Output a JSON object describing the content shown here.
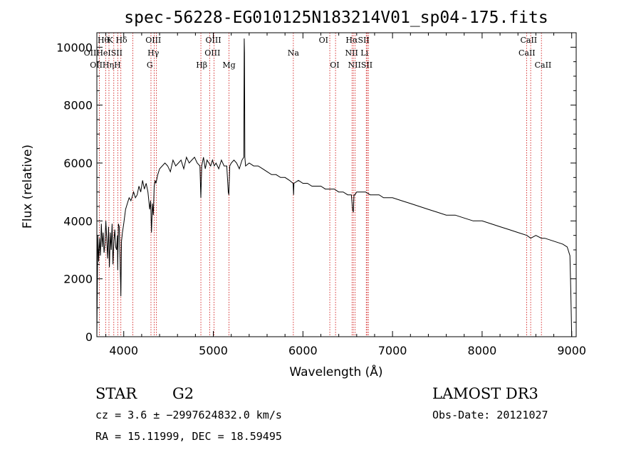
{
  "chart_data": {
    "type": "line",
    "title": "spec-56228-EG010125N183214V01_sp04-175.fits",
    "xlabel": "Wavelength (Å)",
    "ylabel": "Flux (relative)",
    "xlim": [
      3700,
      9050
    ],
    "ylim": [
      0,
      10500
    ],
    "xticks": [
      4000,
      5000,
      6000,
      7000,
      8000,
      9000
    ],
    "yticks": [
      0,
      2000,
      4000,
      6000,
      8000,
      10000
    ],
    "grid": false,
    "series": [
      {
        "x": [
          3700,
          3710,
          3720,
          3730,
          3740,
          3750,
          3760,
          3770,
          3780,
          3790,
          3800,
          3810,
          3820,
          3830,
          3840,
          3850,
          3860,
          3870,
          3880,
          3890,
          3900,
          3910,
          3920,
          3930,
          3933,
          3940,
          3950,
          3960,
          3968,
          3975,
          3985,
          4000,
          4020,
          4040,
          4060,
          4080,
          4101,
          4110,
          4130,
          4150,
          4170,
          4190,
          4210,
          4230,
          4250,
          4270,
          4290,
          4300,
          4310,
          4320,
          4330,
          4340,
          4350,
          4360,
          4380,
          4400,
          4430,
          4460,
          4490,
          4520,
          4550,
          4580,
          4610,
          4640,
          4670,
          4700,
          4730,
          4760,
          4790,
          4820,
          4850,
          4861,
          4870,
          4890,
          4910,
          4930,
          4950,
          4970,
          4990,
          5010,
          5030,
          5060,
          5090,
          5120,
          5150,
          5167,
          5173,
          5183,
          5200,
          5230,
          5260,
          5290,
          5320,
          5340,
          5345,
          5348,
          5352,
          5360,
          5400,
          5450,
          5500,
          5550,
          5600,
          5650,
          5700,
          5750,
          5800,
          5850,
          5890,
          5896,
          5900,
          5950,
          6000,
          6050,
          6100,
          6150,
          6200,
          6250,
          6300,
          6350,
          6400,
          6450,
          6500,
          6540,
          6555,
          6563,
          6570,
          6580,
          6600,
          6650,
          6700,
          6750,
          6800,
          6850,
          6900,
          6950,
          7000,
          7100,
          7200,
          7300,
          7400,
          7500,
          7600,
          7700,
          7800,
          7900,
          8000,
          8100,
          8200,
          8300,
          8400,
          8500,
          8542,
          8600,
          8662,
          8700,
          8800,
          8900,
          8950,
          8980,
          8990,
          9000
        ],
        "y": [
          0,
          3500,
          2600,
          3400,
          2800,
          3900,
          3100,
          3600,
          2900,
          3200,
          4000,
          3400,
          2700,
          3800,
          2400,
          3600,
          3000,
          3900,
          2500,
          3300,
          3700,
          3100,
          3000,
          3500,
          2300,
          3900,
          3800,
          2600,
          1400,
          3300,
          3600,
          3900,
          4400,
          4600,
          4800,
          4700,
          4900,
          5000,
          4800,
          4900,
          5200,
          5000,
          5400,
          5100,
          5300,
          5000,
          4400,
          4700,
          3600,
          4600,
          4200,
          5200,
          5400,
          5300,
          5600,
          5800,
          5900,
          6000,
          5900,
          5700,
          6100,
          5900,
          6000,
          6100,
          5800,
          6200,
          6000,
          6100,
          6200,
          6000,
          5900,
          4800,
          5900,
          6200,
          5800,
          6100,
          6000,
          5900,
          6100,
          5900,
          6000,
          5800,
          6100,
          5900,
          5900,
          5000,
          4900,
          5900,
          6000,
          6100,
          6000,
          5800,
          6100,
          6200,
          10300,
          9800,
          6200,
          5900,
          6000,
          5900,
          5900,
          5800,
          5700,
          5600,
          5600,
          5500,
          5500,
          5400,
          5300,
          4900,
          5300,
          5400,
          5300,
          5300,
          5200,
          5200,
          5200,
          5100,
          5100,
          5100,
          5000,
          5000,
          4900,
          4900,
          4400,
          4300,
          4900,
          4900,
          5000,
          5000,
          5000,
          4900,
          4900,
          4900,
          4800,
          4800,
          4800,
          4700,
          4600,
          4500,
          4400,
          4300,
          4200,
          4200,
          4100,
          4000,
          4000,
          3900,
          3800,
          3700,
          3600,
          3500,
          3400,
          3500,
          3400,
          3400,
          3300,
          3200,
          3100,
          2800,
          1500,
          0
        ]
      }
    ],
    "line_markers": [
      {
        "wl": 3728,
        "labels": [
          "OII"
        ]
      },
      {
        "wl": 3798,
        "labels": [
          "OII"
        ]
      },
      {
        "wl": 3835,
        "labels": [
          "Hθ",
          "HeI",
          "Hη"
        ]
      },
      {
        "wl": 3889,
        "labels": [
          "HeI"
        ]
      },
      {
        "wl": 3933,
        "labels": [
          "K"
        ]
      },
      {
        "wl": 3968,
        "labels": [
          "SII",
          "H"
        ]
      },
      {
        "wl": 4101,
        "labels": [
          "Hδ",
          "SII"
        ]
      },
      {
        "wl": 4304,
        "labels": [
          "OIII",
          "G"
        ]
      },
      {
        "wl": 4340,
        "labels": [
          "Hγ"
        ]
      },
      {
        "wl": 4363,
        "labels": [
          "OIII"
        ]
      },
      {
        "wl": 4861,
        "labels": [
          "Hβ"
        ]
      },
      {
        "wl": 4959,
        "labels": [
          "OIII"
        ]
      },
      {
        "wl": 5007,
        "labels": [
          "OIII"
        ]
      },
      {
        "wl": 5175,
        "labels": [
          "Mg"
        ]
      },
      {
        "wl": 5893,
        "labels": [
          "Na"
        ]
      },
      {
        "wl": 6300,
        "labels": [
          "OI"
        ]
      },
      {
        "wl": 6364,
        "labels": [
          "OI"
        ]
      },
      {
        "wl": 6548,
        "labels": [
          "NII"
        ]
      },
      {
        "wl": 6563,
        "labels": [
          "Hα",
          "NII"
        ]
      },
      {
        "wl": 6583,
        "labels": [
          "NII"
        ]
      },
      {
        "wl": 6707,
        "labels": [
          "Li"
        ]
      },
      {
        "wl": 6717,
        "labels": [
          "SII",
          "SII"
        ]
      },
      {
        "wl": 6731,
        "labels": [
          "SII",
          "SII"
        ]
      },
      {
        "wl": 8498,
        "labels": [
          "CaII"
        ]
      },
      {
        "wl": 8542,
        "labels": [
          "CaII"
        ]
      },
      {
        "wl": 8662,
        "labels": [
          "CaII"
        ]
      }
    ],
    "line_label_rows": [
      [
        {
          "wl": 3772,
          "text": "Hθ"
        },
        {
          "wl": 3850,
          "text": "K"
        },
        {
          "wl": 3975,
          "text": "Hδ"
        },
        {
          "wl": 4330,
          "text": "OIII"
        },
        {
          "wl": 5000,
          "text": "OIII"
        },
        {
          "wl": 6230,
          "text": "OI"
        },
        {
          "wl": 6610,
          "text": "HαSII"
        },
        {
          "wl": 8520,
          "text": "CaII"
        }
      ],
      [
        {
          "wl": 3770,
          "text": "OIIHeISII"
        },
        {
          "wl": 4330,
          "text": "Hγ"
        },
        {
          "wl": 4990,
          "text": "OIII"
        },
        {
          "wl": 5893,
          "text": "Na"
        },
        {
          "wl": 6600,
          "text": "NII Li"
        },
        {
          "wl": 8500,
          "text": "CaII"
        }
      ],
      [
        {
          "wl": 3795,
          "text": "OIIHηH"
        },
        {
          "wl": 4290,
          "text": "G"
        },
        {
          "wl": 4870,
          "text": "Hβ"
        },
        {
          "wl": 5175,
          "text": "Mg"
        },
        {
          "wl": 6355,
          "text": "OI"
        },
        {
          "wl": 6640,
          "text": "NIISII"
        },
        {
          "wl": 8680,
          "text": "CaII"
        }
      ]
    ],
    "marker_color": "#cc0000",
    "line_color": "#000000"
  },
  "info": {
    "object_type": "STAR",
    "subclass": "G2",
    "survey": "LAMOST DR3",
    "redshift": "cz = 3.6 ± −2997624832.0 km/s",
    "obs_date": "Obs-Date: 20121027",
    "coords": "RA =  15.11999, DEC =  18.59495"
  }
}
